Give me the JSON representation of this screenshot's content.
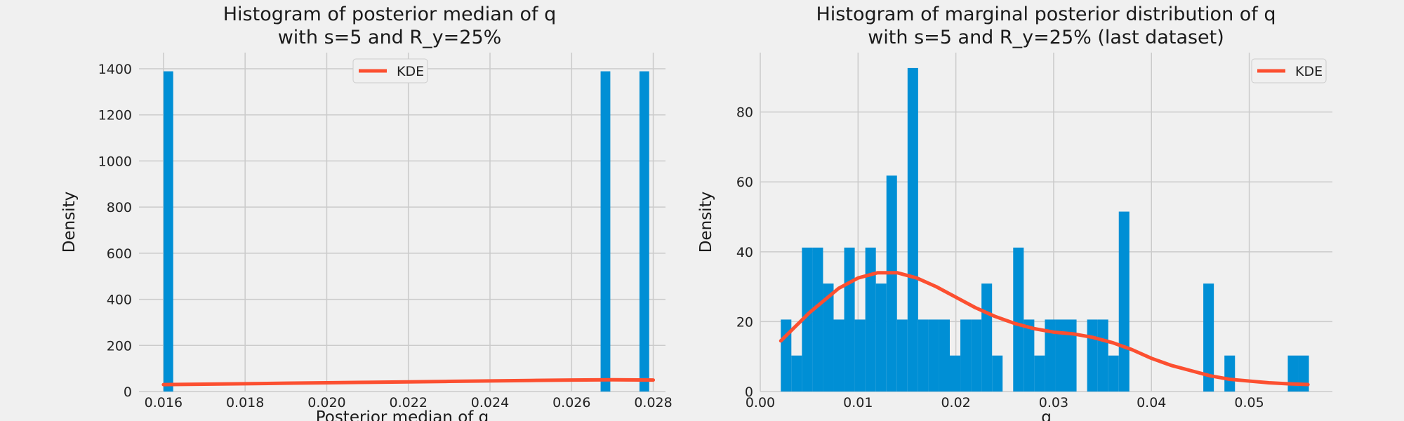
{
  "colors": {
    "background": "#f0f0f0",
    "bars": "#008fd5",
    "kde": "#fc4f30",
    "grid": "#cbcbcb"
  },
  "chart_data": [
    {
      "type": "bar",
      "title_lines": [
        "Histogram of posterior median of q",
        "with s=5 and R_y=25%"
      ],
      "xlabel": "Posterior median of q",
      "ylabel": "Density",
      "xlim": [
        0.0154,
        0.0283
      ],
      "ylim": [
        0,
        1470
      ],
      "xticks": [
        0.016,
        0.018,
        0.02,
        0.022,
        0.024,
        0.026,
        0.028
      ],
      "xtick_labels": [
        "0.016",
        "0.018",
        "0.020",
        "0.022",
        "0.024",
        "0.026",
        "0.028"
      ],
      "yticks": [
        0,
        200,
        400,
        600,
        800,
        1000,
        1200,
        1400
      ],
      "ytick_labels": [
        "0",
        "200",
        "400",
        "600",
        "800",
        "1000",
        "1200",
        "1400"
      ],
      "bins": {
        "start": 0.016,
        "width": 0.000238,
        "count": 50
      },
      "bars": [
        {
          "bin": 0,
          "value": 1389
        },
        {
          "bin": 45,
          "value": 1389
        },
        {
          "bin": 49,
          "value": 1389
        }
      ],
      "kde": {
        "label": "KDE",
        "x": [
          0.016,
          0.017,
          0.018,
          0.019,
          0.02,
          0.021,
          0.022,
          0.023,
          0.024,
          0.025,
          0.026,
          0.027,
          0.028
        ],
        "y": [
          30,
          32,
          34,
          36,
          38,
          40,
          42,
          44,
          46,
          48,
          50,
          51,
          50
        ]
      },
      "legend": {
        "location": "top-center",
        "label": "KDE"
      },
      "grid": true
    },
    {
      "type": "bar",
      "title_lines": [
        "Histogram of marginal posterior distribution of q",
        "with s=5 and R_y=25% (last dataset)"
      ],
      "xlabel": "q",
      "ylabel": "Density",
      "xlim": [
        0.0,
        0.0585
      ],
      "ylim": [
        0,
        97
      ],
      "xticks": [
        0.0,
        0.01,
        0.02,
        0.03,
        0.04,
        0.05
      ],
      "xtick_labels": [
        "0.00",
        "0.01",
        "0.02",
        "0.03",
        "0.04",
        "0.05"
      ],
      "yticks": [
        0,
        20,
        40,
        60,
        80
      ],
      "ytick_labels": [
        "0",
        "20",
        "40",
        "60",
        "80"
      ],
      "bins": {
        "start": 0.0021,
        "width": 0.00108,
        "count": 50
      },
      "values": [
        20.6,
        10.3,
        41.2,
        41.2,
        30.9,
        20.6,
        41.2,
        20.6,
        41.2,
        30.9,
        61.8,
        20.6,
        92.6,
        20.6,
        20.6,
        20.6,
        10.3,
        20.6,
        20.6,
        30.9,
        10.3,
        0,
        41.2,
        20.6,
        10.3,
        20.6,
        20.6,
        20.6,
        0,
        20.6,
        20.6,
        10.3,
        51.5,
        0,
        0,
        0,
        0,
        0,
        0,
        0,
        30.9,
        0,
        10.3,
        0,
        0,
        0,
        0,
        0,
        10.3,
        10.3
      ],
      "kde": {
        "label": "KDE",
        "x": [
          0.0021,
          0.005,
          0.008,
          0.01,
          0.012,
          0.014,
          0.016,
          0.018,
          0.02,
          0.022,
          0.024,
          0.026,
          0.028,
          0.03,
          0.032,
          0.034,
          0.036,
          0.038,
          0.04,
          0.042,
          0.044,
          0.046,
          0.048,
          0.05,
          0.052,
          0.054,
          0.056
        ],
        "y": [
          14.5,
          22.5,
          29.5,
          32.5,
          34.0,
          34.0,
          32.5,
          30.0,
          27.0,
          24.0,
          21.5,
          19.5,
          18.0,
          17.0,
          16.5,
          15.5,
          14.0,
          12.0,
          9.5,
          7.5,
          6.0,
          4.5,
          3.5,
          3.0,
          2.5,
          2.2,
          2.0
        ]
      },
      "legend": {
        "location": "top-right",
        "label": "KDE"
      },
      "grid": true
    }
  ]
}
